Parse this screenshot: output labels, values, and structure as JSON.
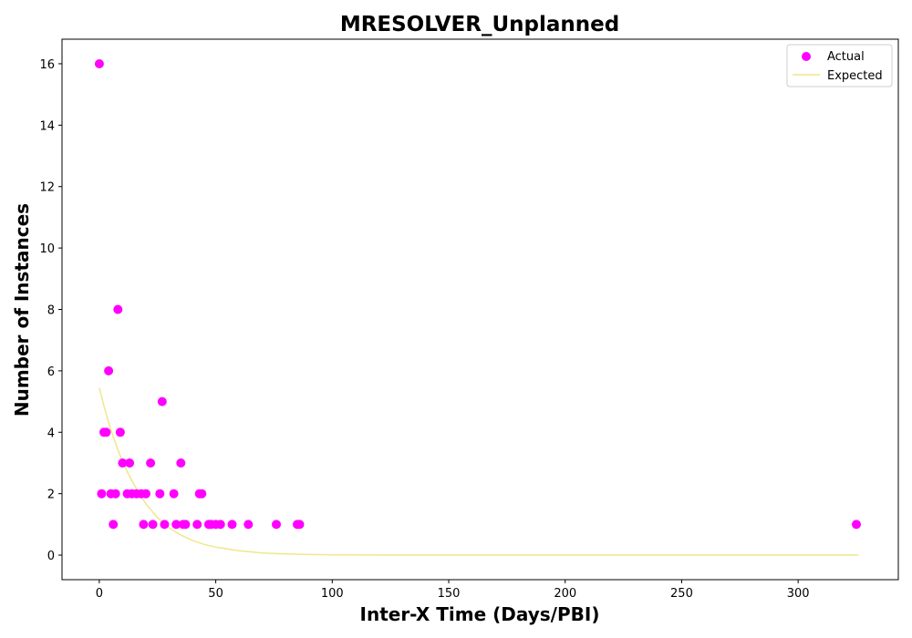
{
  "chart_data": {
    "type": "scatter",
    "title": "MRESOLVER_Unplanned",
    "xlabel": "Inter-X Time (Days/PBI)",
    "ylabel": "Number of Instances",
    "xlim": [
      -16,
      343
    ],
    "ylim": [
      -0.8,
      16.8
    ],
    "xticks": [
      0,
      50,
      100,
      150,
      200,
      250,
      300
    ],
    "yticks": [
      0,
      2,
      4,
      6,
      8,
      10,
      12,
      14,
      16
    ],
    "grid": false,
    "legend_position": "top-right",
    "series": [
      {
        "name": "Actual",
        "kind": "scatter",
        "color": "#ff00ff",
        "points": [
          [
            0,
            16
          ],
          [
            1,
            2
          ],
          [
            2,
            4
          ],
          [
            3,
            4
          ],
          [
            4,
            6
          ],
          [
            5,
            2
          ],
          [
            6,
            1
          ],
          [
            7,
            2
          ],
          [
            8,
            8
          ],
          [
            9,
            4
          ],
          [
            10,
            3
          ],
          [
            12,
            2
          ],
          [
            13,
            3
          ],
          [
            14,
            2
          ],
          [
            16,
            2
          ],
          [
            18,
            2
          ],
          [
            19,
            1
          ],
          [
            20,
            2
          ],
          [
            22,
            3
          ],
          [
            23,
            1
          ],
          [
            26,
            2
          ],
          [
            27,
            5
          ],
          [
            28,
            1
          ],
          [
            32,
            2
          ],
          [
            33,
            1
          ],
          [
            35,
            3
          ],
          [
            36,
            1
          ],
          [
            37,
            1
          ],
          [
            42,
            1
          ],
          [
            43,
            2
          ],
          [
            44,
            2
          ],
          [
            47,
            1
          ],
          [
            48,
            1
          ],
          [
            50,
            1
          ],
          [
            52,
            1
          ],
          [
            57,
            1
          ],
          [
            64,
            1
          ],
          [
            76,
            1
          ],
          [
            85,
            1
          ],
          [
            86,
            1
          ],
          [
            325,
            1
          ]
        ]
      },
      {
        "name": "Expected",
        "kind": "line",
        "color": "#f0e68c",
        "x": [
          0,
          2,
          4,
          6,
          8,
          10,
          12,
          15,
          20,
          25,
          30,
          35,
          40,
          45,
          50,
          60,
          70,
          80,
          90,
          100,
          110,
          125,
          150,
          175,
          200,
          250,
          300,
          326
        ],
        "values": [
          5.45,
          4.85,
          4.32,
          3.85,
          3.43,
          3.05,
          2.72,
          2.28,
          1.67,
          1.22,
          0.89,
          0.65,
          0.48,
          0.35,
          0.26,
          0.14,
          0.07,
          0.04,
          0.02,
          0.01,
          0.006,
          0.002,
          0.0004,
          0.0001,
          0.0,
          0.0,
          0.0,
          0.0
        ]
      }
    ]
  }
}
